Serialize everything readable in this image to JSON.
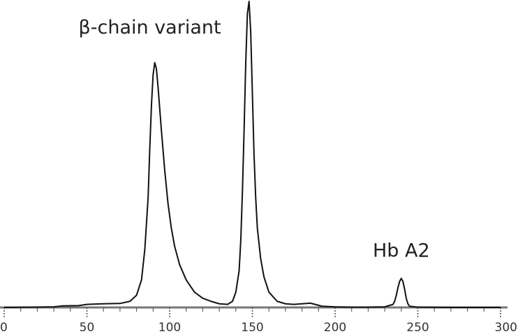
{
  "chart_data": {
    "type": "line",
    "title": "",
    "xlabel": "",
    "ylabel": "",
    "xlim": [
      0,
      300
    ],
    "ylim": [
      0,
      1
    ],
    "grid": false,
    "x_ticks": [
      0,
      50,
      100,
      150,
      200,
      250,
      300
    ],
    "x_tick_labels": [
      "0",
      "50",
      "100",
      "150",
      "200",
      "250",
      "300"
    ],
    "series": [
      {
        "color": "#111111",
        "x": [
          0,
          30,
          35,
          45,
          50,
          60,
          70,
          76,
          80,
          83,
          85,
          87,
          88,
          89,
          90,
          91,
          92,
          93,
          95,
          97,
          99,
          101,
          103,
          106,
          110,
          115,
          120,
          125,
          130,
          135,
          138,
          140,
          142,
          143,
          144,
          145,
          146,
          147,
          148,
          149,
          150,
          151,
          152,
          153,
          155,
          157,
          160,
          165,
          170,
          175,
          180,
          185,
          188,
          192,
          200,
          210,
          220,
          230,
          235,
          236,
          237,
          238,
          239,
          240,
          241,
          242,
          243,
          244,
          245,
          250,
          270,
          300
        ],
        "y": [
          0,
          0.002,
          0.005,
          0.006,
          0.01,
          0.012,
          0.013,
          0.02,
          0.04,
          0.09,
          0.19,
          0.36,
          0.52,
          0.66,
          0.76,
          0.8,
          0.78,
          0.72,
          0.58,
          0.45,
          0.34,
          0.26,
          0.2,
          0.14,
          0.09,
          0.05,
          0.03,
          0.02,
          0.012,
          0.01,
          0.02,
          0.05,
          0.12,
          0.22,
          0.38,
          0.58,
          0.8,
          0.96,
          1.0,
          0.9,
          0.7,
          0.5,
          0.36,
          0.26,
          0.16,
          0.1,
          0.05,
          0.02,
          0.012,
          0.01,
          0.012,
          0.014,
          0.01,
          0.004,
          0.002,
          0.001,
          0.001,
          0.002,
          0.01,
          0.02,
          0.04,
          0.065,
          0.085,
          0.095,
          0.085,
          0.06,
          0.03,
          0.012,
          0.004,
          0.001,
          0,
          0
        ]
      }
    ],
    "annotations": [
      {
        "text": "β-chain variant",
        "x": 88,
        "y": 0.895
      },
      {
        "text": "Hb A2",
        "x": 240,
        "y": 0.165
      }
    ]
  }
}
